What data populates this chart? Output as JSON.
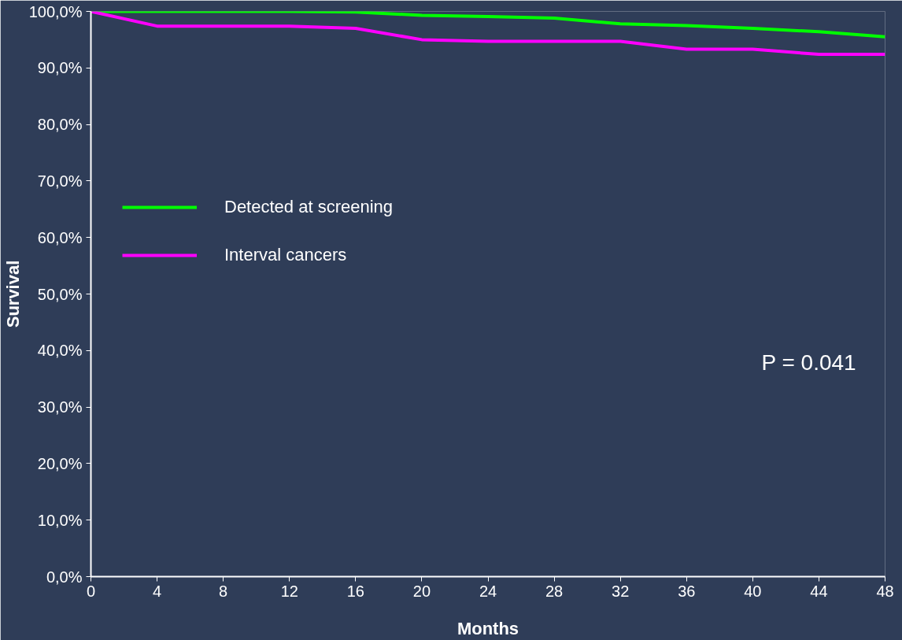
{
  "chart_data": {
    "type": "line",
    "xlabel": "Months",
    "ylabel": "Survival",
    "x": [
      0,
      4,
      8,
      12,
      16,
      20,
      24,
      28,
      32,
      36,
      40,
      44,
      48
    ],
    "series": [
      {
        "name": "Detected at screening",
        "color": "#00ff00",
        "values": [
          100,
          100,
          100,
          100,
          99.9,
          99.3,
          99.1,
          98.8,
          97.8,
          97.5,
          97.0,
          96.4,
          95.5
        ]
      },
      {
        "name": "Interval cancers",
        "color": "#ff00ff",
        "values": [
          100,
          97.4,
          97.4,
          97.4,
          97.0,
          95.0,
          94.7,
          94.7,
          94.7,
          93.3,
          93.3,
          92.4,
          92.4
        ]
      }
    ],
    "xlim": [
      0,
      48
    ],
    "ylim": [
      0,
      100
    ],
    "xticks": [
      0,
      4,
      8,
      12,
      16,
      20,
      24,
      28,
      32,
      36,
      40,
      44,
      48
    ],
    "yticks": [
      {
        "value": 0,
        "label": "0,0%"
      },
      {
        "value": 10,
        "label": "10,0%"
      },
      {
        "value": 20,
        "label": "20,0%"
      },
      {
        "value": 30,
        "label": "30,0%"
      },
      {
        "value": 40,
        "label": "40,0%"
      },
      {
        "value": 50,
        "label": "50,0%"
      },
      {
        "value": 60,
        "label": "60,0%"
      },
      {
        "value": 70,
        "label": "70,0%"
      },
      {
        "value": 80,
        "label": "80,0%"
      },
      {
        "value": 90,
        "label": "90,0%"
      },
      {
        "value": 100,
        "label": "100,0%"
      }
    ],
    "annotations": [
      "P = 0.041"
    ],
    "legend": "top left",
    "grid": false,
    "marker": "none",
    "line_style": "solid"
  }
}
